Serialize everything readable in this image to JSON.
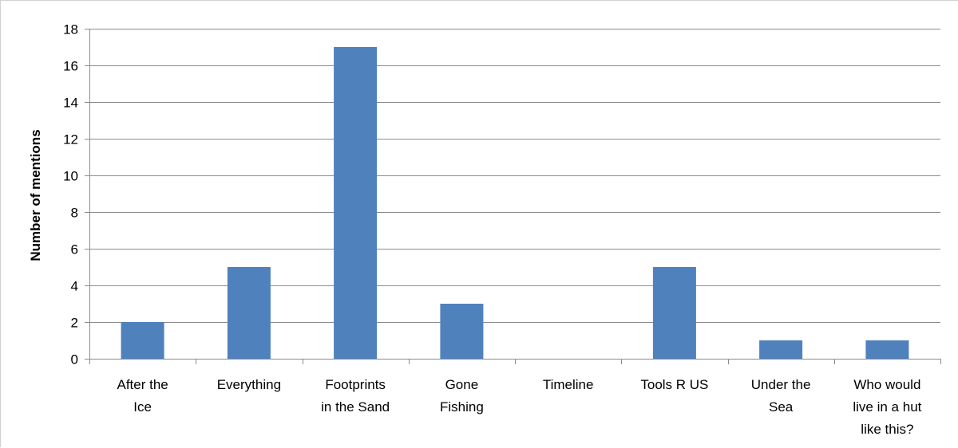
{
  "chart_data": {
    "type": "bar",
    "categories": [
      [
        "After the",
        "Ice"
      ],
      [
        "Everything"
      ],
      [
        "Footprints",
        "in the Sand"
      ],
      [
        "Gone",
        "Fishing"
      ],
      [
        "Timeline"
      ],
      [
        "Tools R US"
      ],
      [
        "Under the",
        "Sea"
      ],
      [
        "Who would",
        "live in a hut",
        "like this?"
      ]
    ],
    "values": [
      2,
      5,
      17,
      3,
      0,
      5,
      1,
      1
    ],
    "ylabel": "Number of mentions",
    "xlabel": "",
    "ylim": [
      0,
      18
    ],
    "yticks": [
      0,
      2,
      4,
      6,
      8,
      10,
      12,
      14,
      16,
      18
    ],
    "grid": true,
    "legend": "none",
    "colors": {
      "bar": "#4F81BD",
      "grid": "#8C8C8C",
      "axis": "#8C8C8C"
    }
  }
}
